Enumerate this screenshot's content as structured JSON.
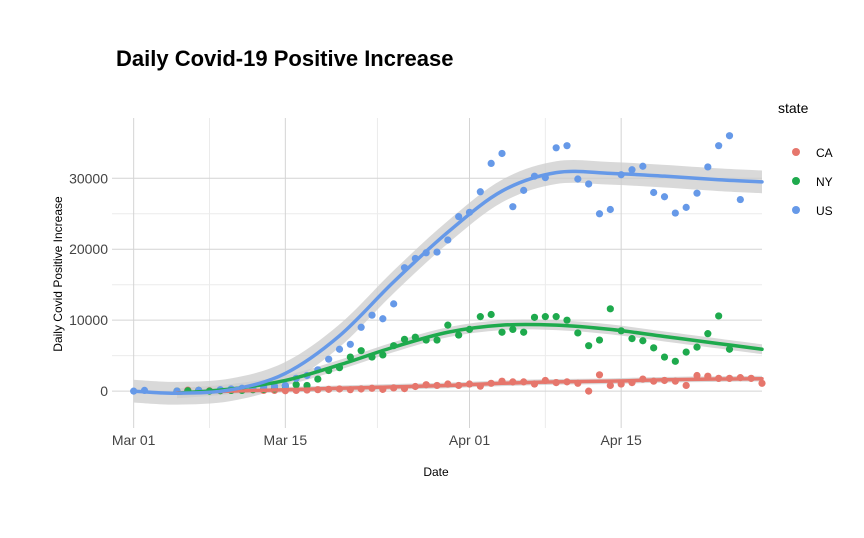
{
  "chart_data": {
    "type": "scatter",
    "title": "Daily Covid-19 Positive Increase",
    "xlabel": "Date",
    "ylabel": "Daily Covid Positive Increase",
    "x_start": "2020-02-28",
    "x_end": "2020-04-28",
    "xlim": [
      "2020-02-28",
      "2020-04-28"
    ],
    "ylim": [
      -5200,
      38500
    ],
    "x_ticks": [
      {
        "date": "2020-03-01",
        "label": "Mar 01"
      },
      {
        "date": "2020-03-15",
        "label": "Mar 15"
      },
      {
        "date": "2020-04-01",
        "label": "Apr 01"
      },
      {
        "date": "2020-04-15",
        "label": "Apr 15"
      }
    ],
    "y_ticks": [
      0,
      10000,
      20000,
      30000
    ],
    "legend": {
      "title": "state",
      "position": "right"
    },
    "grid": true,
    "smooth": {
      "method": "loess",
      "confidence_band": true,
      "band_color": "#cccccc"
    },
    "series": [
      {
        "name": "CA",
        "color": "#e6766c",
        "points": [
          [
            "2020-03-05",
            0
          ],
          [
            "2020-03-06",
            150
          ],
          [
            "2020-03-07",
            100
          ],
          [
            "2020-03-08",
            50
          ],
          [
            "2020-03-09",
            100
          ],
          [
            "2020-03-10",
            100
          ],
          [
            "2020-03-11",
            150
          ],
          [
            "2020-03-12",
            200
          ],
          [
            "2020-03-13",
            100
          ],
          [
            "2020-03-14",
            100
          ],
          [
            "2020-03-15",
            50
          ],
          [
            "2020-03-16",
            100
          ],
          [
            "2020-03-17",
            150
          ],
          [
            "2020-03-18",
            200
          ],
          [
            "2020-03-19",
            250
          ],
          [
            "2020-03-20",
            300
          ],
          [
            "2020-03-21",
            200
          ],
          [
            "2020-03-22",
            300
          ],
          [
            "2020-03-23",
            400
          ],
          [
            "2020-03-24",
            250
          ],
          [
            "2020-03-25",
            450
          ],
          [
            "2020-03-26",
            350
          ],
          [
            "2020-03-27",
            650
          ],
          [
            "2020-03-28",
            900
          ],
          [
            "2020-03-29",
            800
          ],
          [
            "2020-03-30",
            1000
          ],
          [
            "2020-03-31",
            800
          ],
          [
            "2020-04-01",
            1000
          ],
          [
            "2020-04-02",
            700
          ],
          [
            "2020-04-03",
            1100
          ],
          [
            "2020-04-04",
            1400
          ],
          [
            "2020-04-05",
            1300
          ],
          [
            "2020-04-06",
            1300
          ],
          [
            "2020-04-07",
            1000
          ],
          [
            "2020-04-08",
            1500
          ],
          [
            "2020-04-09",
            1200
          ],
          [
            "2020-04-10",
            1300
          ],
          [
            "2020-04-11",
            1100
          ],
          [
            "2020-04-12",
            0
          ],
          [
            "2020-04-13",
            2300
          ],
          [
            "2020-04-14",
            800
          ],
          [
            "2020-04-15",
            1000
          ],
          [
            "2020-04-16",
            1200
          ],
          [
            "2020-04-17",
            1700
          ],
          [
            "2020-04-18",
            1400
          ],
          [
            "2020-04-19",
            1500
          ],
          [
            "2020-04-20",
            1400
          ],
          [
            "2020-04-21",
            800
          ],
          [
            "2020-04-22",
            2200
          ],
          [
            "2020-04-23",
            2100
          ],
          [
            "2020-04-24",
            1800
          ],
          [
            "2020-04-25",
            1800
          ],
          [
            "2020-04-26",
            1900
          ],
          [
            "2020-04-27",
            1800
          ],
          [
            "2020-04-28",
            1100
          ]
        ],
        "trend": [
          [
            "2020-03-05",
            -250
          ],
          [
            "2020-03-10",
            0
          ],
          [
            "2020-03-15",
            200
          ],
          [
            "2020-03-20",
            400
          ],
          [
            "2020-03-25",
            600
          ],
          [
            "2020-03-30",
            800
          ],
          [
            "2020-04-04",
            1100
          ],
          [
            "2020-04-09",
            1300
          ],
          [
            "2020-04-14",
            1400
          ],
          [
            "2020-04-19",
            1600
          ],
          [
            "2020-04-24",
            1700
          ],
          [
            "2020-04-28",
            1750
          ]
        ],
        "trend_band": 400
      },
      {
        "name": "NY",
        "color": "#1eaa4d",
        "points": [
          [
            "2020-03-05",
            0
          ],
          [
            "2020-03-06",
            50
          ],
          [
            "2020-03-07",
            100
          ],
          [
            "2020-03-08",
            0
          ],
          [
            "2020-03-09",
            50
          ],
          [
            "2020-03-10",
            100
          ],
          [
            "2020-03-11",
            100
          ],
          [
            "2020-03-12",
            200
          ],
          [
            "2020-03-13",
            250
          ],
          [
            "2020-03-14",
            300
          ],
          [
            "2020-03-15",
            700
          ],
          [
            "2020-03-16",
            900
          ],
          [
            "2020-03-17",
            800
          ],
          [
            "2020-03-18",
            1700
          ],
          [
            "2020-03-19",
            2900
          ],
          [
            "2020-03-20",
            3300
          ],
          [
            "2020-03-21",
            4800
          ],
          [
            "2020-03-22",
            5700
          ],
          [
            "2020-03-23",
            4800
          ],
          [
            "2020-03-24",
            5100
          ],
          [
            "2020-03-25",
            6400
          ],
          [
            "2020-03-26",
            7300
          ],
          [
            "2020-03-27",
            7600
          ],
          [
            "2020-03-28",
            7200
          ],
          [
            "2020-03-29",
            7200
          ],
          [
            "2020-03-30",
            9300
          ],
          [
            "2020-03-31",
            7900
          ],
          [
            "2020-04-01",
            8700
          ],
          [
            "2020-04-02",
            10500
          ],
          [
            "2020-04-03",
            10800
          ],
          [
            "2020-04-04",
            8300
          ],
          [
            "2020-04-05",
            8700
          ],
          [
            "2020-04-06",
            8300
          ],
          [
            "2020-04-07",
            10400
          ],
          [
            "2020-04-08",
            10500
          ],
          [
            "2020-04-09",
            10500
          ],
          [
            "2020-04-10",
            10000
          ],
          [
            "2020-04-11",
            8200
          ],
          [
            "2020-04-12",
            6400
          ],
          [
            "2020-04-13",
            7200
          ],
          [
            "2020-04-14",
            11600
          ],
          [
            "2020-04-15",
            8500
          ],
          [
            "2020-04-16",
            7400
          ],
          [
            "2020-04-17",
            7100
          ],
          [
            "2020-04-18",
            6100
          ],
          [
            "2020-04-19",
            4800
          ],
          [
            "2020-04-20",
            4200
          ],
          [
            "2020-04-21",
            5500
          ],
          [
            "2020-04-22",
            6200
          ],
          [
            "2020-04-23",
            8100
          ],
          [
            "2020-04-24",
            10600
          ],
          [
            "2020-04-25",
            5900
          ]
        ],
        "trend": [
          [
            "2020-03-05",
            -300
          ],
          [
            "2020-03-10",
            300
          ],
          [
            "2020-03-15",
            1500
          ],
          [
            "2020-03-20",
            3700
          ],
          [
            "2020-03-25",
            6200
          ],
          [
            "2020-03-30",
            8300
          ],
          [
            "2020-04-04",
            9300
          ],
          [
            "2020-04-09",
            9300
          ],
          [
            "2020-04-14",
            8700
          ],
          [
            "2020-04-19",
            7700
          ],
          [
            "2020-04-24",
            6700
          ],
          [
            "2020-04-28",
            5900
          ]
        ],
        "trend_band": 700
      },
      {
        "name": "US",
        "color": "#6699e8",
        "points": [
          [
            "2020-03-01",
            0
          ],
          [
            "2020-03-02",
            100
          ],
          [
            "2020-03-05",
            0
          ],
          [
            "2020-03-07",
            100
          ],
          [
            "2020-03-09",
            200
          ],
          [
            "2020-03-10",
            300
          ],
          [
            "2020-03-11",
            400
          ],
          [
            "2020-03-12",
            500
          ],
          [
            "2020-03-13",
            600
          ],
          [
            "2020-03-14",
            700
          ],
          [
            "2020-03-15",
            800
          ],
          [
            "2020-03-16",
            1800
          ],
          [
            "2020-03-17",
            2200
          ],
          [
            "2020-03-18",
            3000
          ],
          [
            "2020-03-19",
            4500
          ],
          [
            "2020-03-20",
            5900
          ],
          [
            "2020-03-21",
            6600
          ],
          [
            "2020-03-22",
            9000
          ],
          [
            "2020-03-23",
            10700
          ],
          [
            "2020-03-24",
            10200
          ],
          [
            "2020-03-25",
            12300
          ],
          [
            "2020-03-26",
            17400
          ],
          [
            "2020-03-27",
            18700
          ],
          [
            "2020-03-28",
            19500
          ],
          [
            "2020-03-29",
            19600
          ],
          [
            "2020-03-30",
            21300
          ],
          [
            "2020-03-31",
            24600
          ],
          [
            "2020-04-01",
            25200
          ],
          [
            "2020-04-02",
            28100
          ],
          [
            "2020-04-03",
            32100
          ],
          [
            "2020-04-04",
            33500
          ],
          [
            "2020-04-05",
            26000
          ],
          [
            "2020-04-06",
            28300
          ],
          [
            "2020-04-07",
            30300
          ],
          [
            "2020-04-08",
            30100
          ],
          [
            "2020-04-09",
            34300
          ],
          [
            "2020-04-10",
            34600
          ],
          [
            "2020-04-11",
            29900
          ],
          [
            "2020-04-12",
            29200
          ],
          [
            "2020-04-13",
            25000
          ],
          [
            "2020-04-14",
            25600
          ],
          [
            "2020-04-15",
            30500
          ],
          [
            "2020-04-16",
            31200
          ],
          [
            "2020-04-17",
            31700
          ],
          [
            "2020-04-18",
            28000
          ],
          [
            "2020-04-19",
            27400
          ],
          [
            "2020-04-20",
            25100
          ],
          [
            "2020-04-21",
            25900
          ],
          [
            "2020-04-22",
            27900
          ],
          [
            "2020-04-23",
            31600
          ],
          [
            "2020-04-24",
            34600
          ],
          [
            "2020-04-25",
            36000
          ],
          [
            "2020-04-26",
            27000
          ]
        ],
        "trend": [
          [
            "2020-03-01",
            0
          ],
          [
            "2020-03-05",
            -300
          ],
          [
            "2020-03-10",
            200
          ],
          [
            "2020-03-15",
            2500
          ],
          [
            "2020-03-20",
            7800
          ],
          [
            "2020-03-25",
            15400
          ],
          [
            "2020-03-30",
            22400
          ],
          [
            "2020-04-04",
            28200
          ],
          [
            "2020-04-09",
            30800
          ],
          [
            "2020-04-14",
            30700
          ],
          [
            "2020-04-19",
            30300
          ],
          [
            "2020-04-24",
            29800
          ],
          [
            "2020-04-28",
            29500
          ]
        ],
        "trend_band": 1600
      }
    ]
  }
}
